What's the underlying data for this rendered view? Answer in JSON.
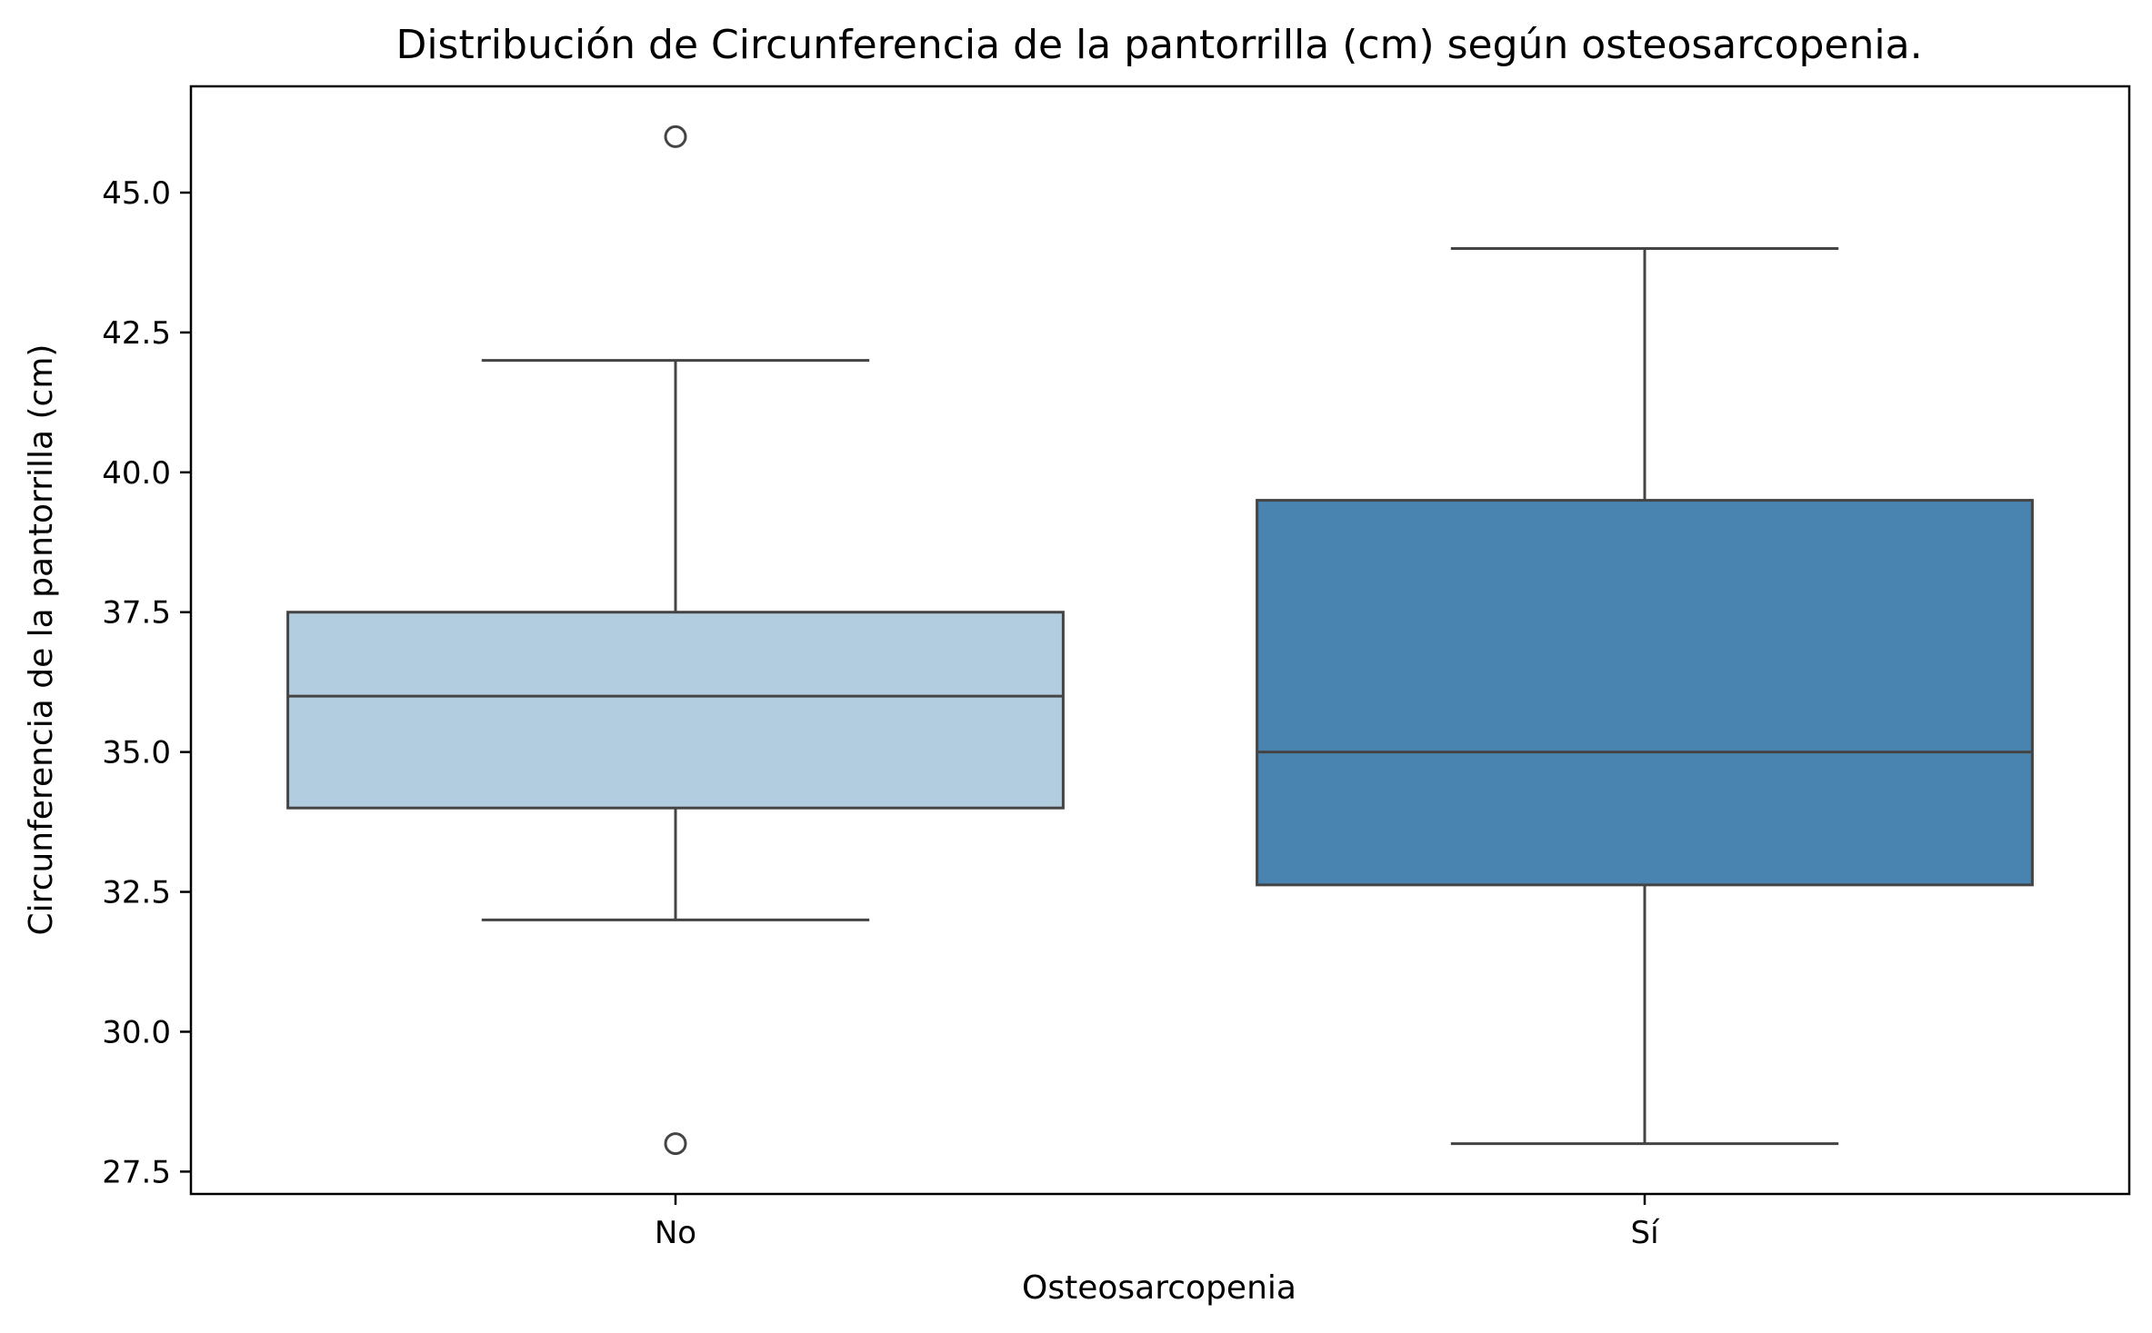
{
  "chart_data": {
    "type": "box",
    "title": "Distribución de Circunferencia de la pantorrilla (cm) según osteosarcopenia.",
    "xlabel": "Osteosarcopenia",
    "ylabel": "Circunferencia de la pantorrilla (cm)",
    "categories": [
      "No",
      "Sí"
    ],
    "ylim": [
      27.1,
      46.9
    ],
    "yticks": [
      27.5,
      30.0,
      32.5,
      35.0,
      37.5,
      40.0,
      42.5,
      45.0
    ],
    "ytick_labels": [
      "27.5",
      "30.0",
      "32.5",
      "35.0",
      "37.5",
      "40.0",
      "42.5",
      "45.0"
    ],
    "grid": false,
    "boxes": [
      {
        "category": "No",
        "whisker_low": 32.0,
        "q1": 34.0,
        "median": 36.0,
        "q3": 37.5,
        "whisker_high": 42.0,
        "outliers": [
          46.0,
          28.0
        ],
        "color": "#b3cde0"
      },
      {
        "category": "Sí",
        "whisker_low": 28.0,
        "q1": 32.625,
        "median": 35.0,
        "q3": 39.5,
        "whisker_high": 44.0,
        "outliers": [],
        "color": "#4884af"
      }
    ]
  }
}
